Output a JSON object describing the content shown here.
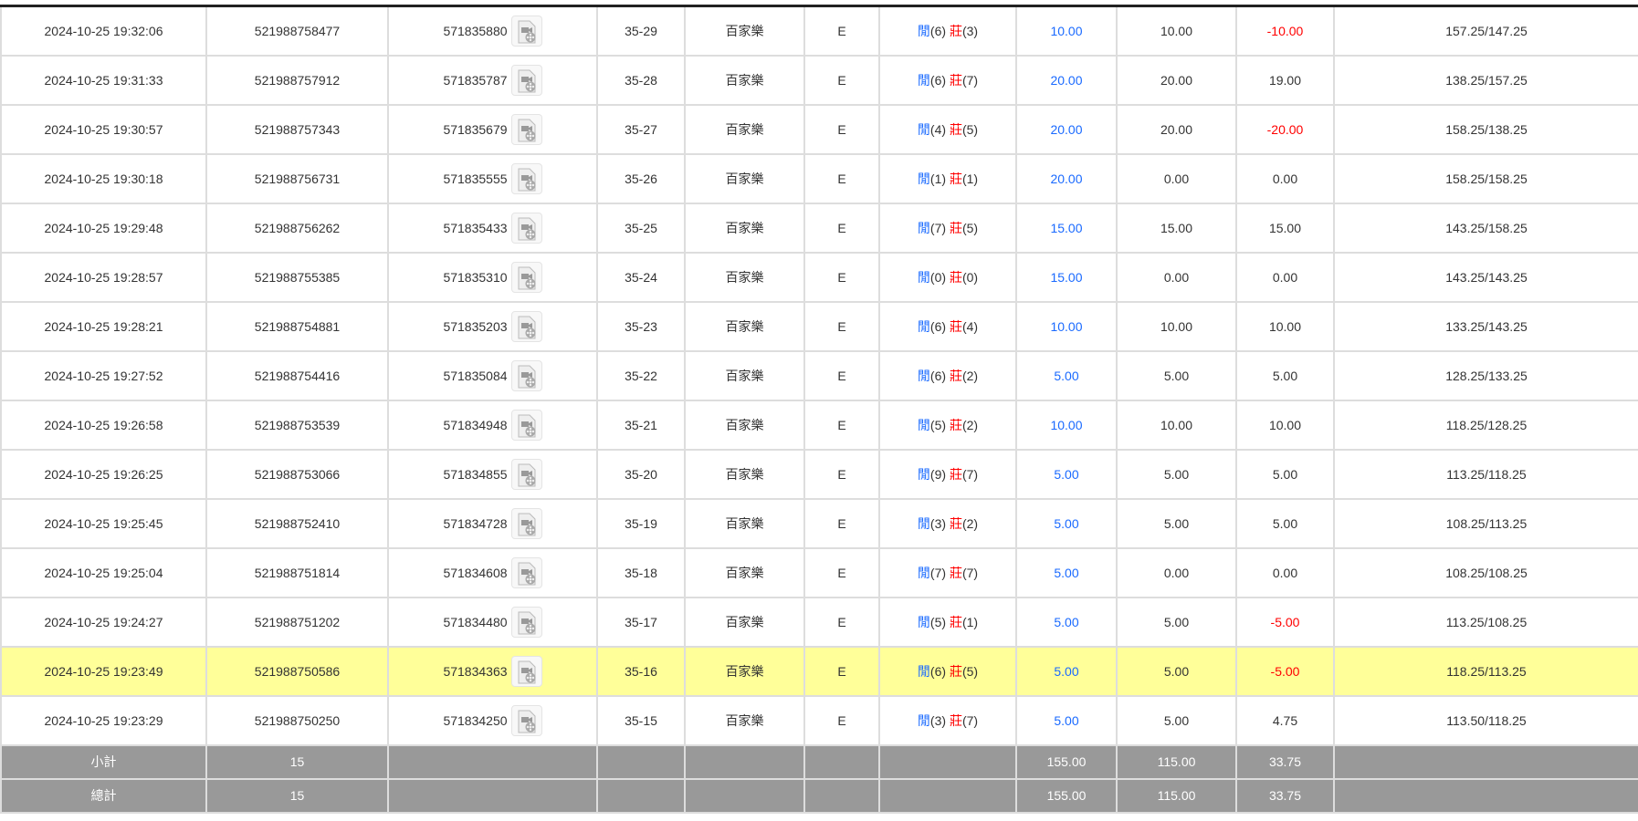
{
  "rows": [
    {
      "time": "2024-10-25 19:32:06",
      "bet_id": "521988758477",
      "round_id": "571835880",
      "shoe": "35-29",
      "game": "百家樂",
      "table": "E",
      "player": "閒",
      "player_pts": "(6)",
      "banker": "莊",
      "banker_pts": "(3)",
      "bet": "10.00",
      "valid": "10.00",
      "win": "-10.00",
      "win_neg": true,
      "balance": "157.25/147.25"
    },
    {
      "time": "2024-10-25 19:31:33",
      "bet_id": "521988757912",
      "round_id": "571835787",
      "shoe": "35-28",
      "game": "百家樂",
      "table": "E",
      "player": "閒",
      "player_pts": "(6)",
      "banker": "莊",
      "banker_pts": "(7)",
      "bet": "20.00",
      "valid": "20.00",
      "win": "19.00",
      "win_neg": false,
      "balance": "138.25/157.25"
    },
    {
      "time": "2024-10-25 19:30:57",
      "bet_id": "521988757343",
      "round_id": "571835679",
      "shoe": "35-27",
      "game": "百家樂",
      "table": "E",
      "player": "閒",
      "player_pts": "(4)",
      "banker": "莊",
      "banker_pts": "(5)",
      "bet": "20.00",
      "valid": "20.00",
      "win": "-20.00",
      "win_neg": true,
      "balance": "158.25/138.25"
    },
    {
      "time": "2024-10-25 19:30:18",
      "bet_id": "521988756731",
      "round_id": "571835555",
      "shoe": "35-26",
      "game": "百家樂",
      "table": "E",
      "player": "閒",
      "player_pts": "(1)",
      "banker": "莊",
      "banker_pts": "(1)",
      "bet": "20.00",
      "valid": "0.00",
      "win": "0.00",
      "win_neg": false,
      "balance": "158.25/158.25"
    },
    {
      "time": "2024-10-25 19:29:48",
      "bet_id": "521988756262",
      "round_id": "571835433",
      "shoe": "35-25",
      "game": "百家樂",
      "table": "E",
      "player": "閒",
      "player_pts": "(7)",
      "banker": "莊",
      "banker_pts": "(5)",
      "bet": "15.00",
      "valid": "15.00",
      "win": "15.00",
      "win_neg": false,
      "balance": "143.25/158.25"
    },
    {
      "time": "2024-10-25 19:28:57",
      "bet_id": "521988755385",
      "round_id": "571835310",
      "shoe": "35-24",
      "game": "百家樂",
      "table": "E",
      "player": "閒",
      "player_pts": "(0)",
      "banker": "莊",
      "banker_pts": "(0)",
      "bet": "15.00",
      "valid": "0.00",
      "win": "0.00",
      "win_neg": false,
      "balance": "143.25/143.25"
    },
    {
      "time": "2024-10-25 19:28:21",
      "bet_id": "521988754881",
      "round_id": "571835203",
      "shoe": "35-23",
      "game": "百家樂",
      "table": "E",
      "player": "閒",
      "player_pts": "(6)",
      "banker": "莊",
      "banker_pts": "(4)",
      "bet": "10.00",
      "valid": "10.00",
      "win": "10.00",
      "win_neg": false,
      "balance": "133.25/143.25"
    },
    {
      "time": "2024-10-25 19:27:52",
      "bet_id": "521988754416",
      "round_id": "571835084",
      "shoe": "35-22",
      "game": "百家樂",
      "table": "E",
      "player": "閒",
      "player_pts": "(6)",
      "banker": "莊",
      "banker_pts": "(2)",
      "bet": "5.00",
      "valid": "5.00",
      "win": "5.00",
      "win_neg": false,
      "balance": "128.25/133.25"
    },
    {
      "time": "2024-10-25 19:26:58",
      "bet_id": "521988753539",
      "round_id": "571834948",
      "shoe": "35-21",
      "game": "百家樂",
      "table": "E",
      "player": "閒",
      "player_pts": "(5)",
      "banker": "莊",
      "banker_pts": "(2)",
      "bet": "10.00",
      "valid": "10.00",
      "win": "10.00",
      "win_neg": false,
      "balance": "118.25/128.25"
    },
    {
      "time": "2024-10-25 19:26:25",
      "bet_id": "521988753066",
      "round_id": "571834855",
      "shoe": "35-20",
      "game": "百家樂",
      "table": "E",
      "player": "閒",
      "player_pts": "(9)",
      "banker": "莊",
      "banker_pts": "(7)",
      "bet": "5.00",
      "valid": "5.00",
      "win": "5.00",
      "win_neg": false,
      "balance": "113.25/118.25"
    },
    {
      "time": "2024-10-25 19:25:45",
      "bet_id": "521988752410",
      "round_id": "571834728",
      "shoe": "35-19",
      "game": "百家樂",
      "table": "E",
      "player": "閒",
      "player_pts": "(3)",
      "banker": "莊",
      "banker_pts": "(2)",
      "bet": "5.00",
      "valid": "5.00",
      "win": "5.00",
      "win_neg": false,
      "balance": "108.25/113.25"
    },
    {
      "time": "2024-10-25 19:25:04",
      "bet_id": "521988751814",
      "round_id": "571834608",
      "shoe": "35-18",
      "game": "百家樂",
      "table": "E",
      "player": "閒",
      "player_pts": "(7)",
      "banker": "莊",
      "banker_pts": "(7)",
      "bet": "5.00",
      "valid": "0.00",
      "win": "0.00",
      "win_neg": false,
      "balance": "108.25/108.25"
    },
    {
      "time": "2024-10-25 19:24:27",
      "bet_id": "521988751202",
      "round_id": "571834480",
      "shoe": "35-17",
      "game": "百家樂",
      "table": "E",
      "player": "閒",
      "player_pts": "(5)",
      "banker": "莊",
      "banker_pts": "(1)",
      "bet": "5.00",
      "valid": "5.00",
      "win": "-5.00",
      "win_neg": true,
      "balance": "113.25/108.25"
    },
    {
      "time": "2024-10-25 19:23:49",
      "bet_id": "521988750586",
      "round_id": "571834363",
      "shoe": "35-16",
      "game": "百家樂",
      "table": "E",
      "player": "閒",
      "player_pts": "(6)",
      "banker": "莊",
      "banker_pts": "(5)",
      "bet": "5.00",
      "valid": "5.00",
      "win": "-5.00",
      "win_neg": true,
      "balance": "118.25/113.25",
      "highlighted": true
    },
    {
      "time": "2024-10-25 19:23:29",
      "bet_id": "521988750250",
      "round_id": "571834250",
      "shoe": "35-15",
      "game": "百家樂",
      "table": "E",
      "player": "閒",
      "player_pts": "(3)",
      "banker": "莊",
      "banker_pts": "(7)",
      "bet": "5.00",
      "valid": "5.00",
      "win": "4.75",
      "win_neg": false,
      "balance": "113.50/118.25"
    }
  ],
  "subtotal": {
    "label": "小計",
    "count": "15",
    "bet": "155.00",
    "valid": "115.00",
    "win": "33.75"
  },
  "total": {
    "label": "總計",
    "count": "15",
    "bet": "155.00",
    "valid": "115.00",
    "win": "33.75"
  },
  "colors": {
    "player": "#1a6aff",
    "banker": "#ff0000",
    "highlight": "#ffff99",
    "summary_bg": "#999999"
  },
  "icons": {
    "replay": "video-file-icon"
  }
}
